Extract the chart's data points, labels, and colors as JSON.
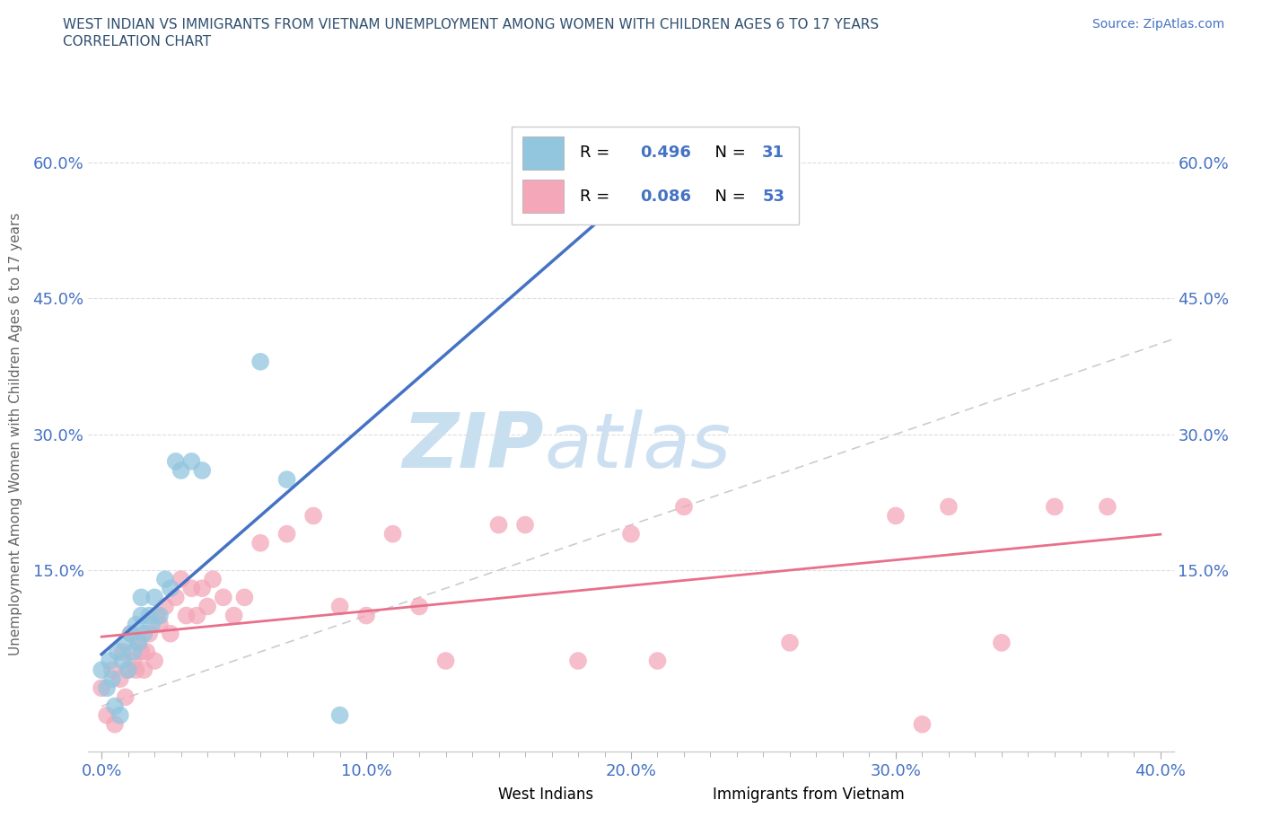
{
  "title_line1": "WEST INDIAN VS IMMIGRANTS FROM VIETNAM UNEMPLOYMENT AMONG WOMEN WITH CHILDREN AGES 6 TO 17 YEARS",
  "title_line2": "CORRELATION CHART",
  "source_text": "Source: ZipAtlas.com",
  "ylabel": "Unemployment Among Women with Children Ages 6 to 17 years",
  "xlim": [
    -0.005,
    0.405
  ],
  "ylim": [
    -0.05,
    0.65
  ],
  "xtick_labels": [
    "0.0%",
    "",
    "",
    "",
    "",
    "",
    "",
    "",
    "",
    "",
    "10.0%",
    "",
    "",
    "",
    "",
    "",
    "",
    "",
    "",
    "",
    "20.0%",
    "",
    "",
    "",
    "",
    "",
    "",
    "",
    "",
    "",
    "30.0%",
    "",
    "",
    "",
    "",
    "",
    "",
    "",
    "",
    "",
    "40.0%"
  ],
  "xtick_values": [
    0.0,
    0.01,
    0.02,
    0.03,
    0.04,
    0.05,
    0.06,
    0.07,
    0.08,
    0.09,
    0.1,
    0.11,
    0.12,
    0.13,
    0.14,
    0.15,
    0.16,
    0.17,
    0.18,
    0.19,
    0.2,
    0.21,
    0.22,
    0.23,
    0.24,
    0.25,
    0.26,
    0.27,
    0.28,
    0.29,
    0.3,
    0.31,
    0.32,
    0.33,
    0.34,
    0.35,
    0.36,
    0.37,
    0.38,
    0.39,
    0.4
  ],
  "xtick_major_labels": [
    "0.0%",
    "10.0%",
    "20.0%",
    "30.0%",
    "40.0%"
  ],
  "xtick_major_values": [
    0.0,
    0.1,
    0.2,
    0.3,
    0.4
  ],
  "ytick_labels": [
    "15.0%",
    "30.0%",
    "45.0%",
    "60.0%"
  ],
  "ytick_values": [
    0.15,
    0.3,
    0.45,
    0.6
  ],
  "color_west_indian": "#92C5DE",
  "color_vietnam": "#F4A7B9",
  "color_line_west_indian": "#4472C4",
  "color_line_vietnam": "#E8708A",
  "color_diagonal": "#AAAAAA",
  "watermark_color": "#D5E8F5",
  "background_color": "#FFFFFF",
  "grid_color": "#DDDDDD",
  "west_indian_x": [
    0.0,
    0.002,
    0.003,
    0.004,
    0.005,
    0.006,
    0.007,
    0.008,
    0.009,
    0.01,
    0.011,
    0.012,
    0.013,
    0.014,
    0.015,
    0.015,
    0.016,
    0.018,
    0.019,
    0.02,
    0.022,
    0.024,
    0.026,
    0.028,
    0.03,
    0.034,
    0.038,
    0.06,
    0.07,
    0.09,
    0.19
  ],
  "west_indian_y": [
    0.04,
    0.02,
    0.05,
    0.03,
    0.0,
    0.06,
    -0.01,
    0.05,
    0.07,
    0.04,
    0.08,
    0.06,
    0.09,
    0.07,
    0.1,
    0.12,
    0.08,
    0.1,
    0.09,
    0.12,
    0.1,
    0.14,
    0.13,
    0.27,
    0.26,
    0.27,
    0.26,
    0.38,
    0.25,
    -0.01,
    0.55
  ],
  "vietnam_x": [
    0.0,
    0.002,
    0.004,
    0.005,
    0.007,
    0.008,
    0.009,
    0.01,
    0.011,
    0.012,
    0.013,
    0.014,
    0.015,
    0.016,
    0.017,
    0.018,
    0.02,
    0.021,
    0.022,
    0.024,
    0.026,
    0.028,
    0.03,
    0.032,
    0.034,
    0.036,
    0.038,
    0.04,
    0.042,
    0.046,
    0.05,
    0.054,
    0.06,
    0.07,
    0.08,
    0.09,
    0.1,
    0.11,
    0.12,
    0.13,
    0.15,
    0.16,
    0.18,
    0.2,
    0.21,
    0.22,
    0.26,
    0.3,
    0.31,
    0.32,
    0.34,
    0.36,
    0.38
  ],
  "vietnam_y": [
    0.02,
    -0.01,
    0.04,
    -0.02,
    0.03,
    0.06,
    0.01,
    0.04,
    0.08,
    0.05,
    0.04,
    0.07,
    0.06,
    0.04,
    0.06,
    0.08,
    0.05,
    0.1,
    0.09,
    0.11,
    0.08,
    0.12,
    0.14,
    0.1,
    0.13,
    0.1,
    0.13,
    0.11,
    0.14,
    0.12,
    0.1,
    0.12,
    0.18,
    0.19,
    0.21,
    0.11,
    0.1,
    0.19,
    0.11,
    0.05,
    0.2,
    0.2,
    0.05,
    0.19,
    0.05,
    0.22,
    0.07,
    0.21,
    -0.02,
    0.22,
    0.07,
    0.22,
    0.22
  ]
}
